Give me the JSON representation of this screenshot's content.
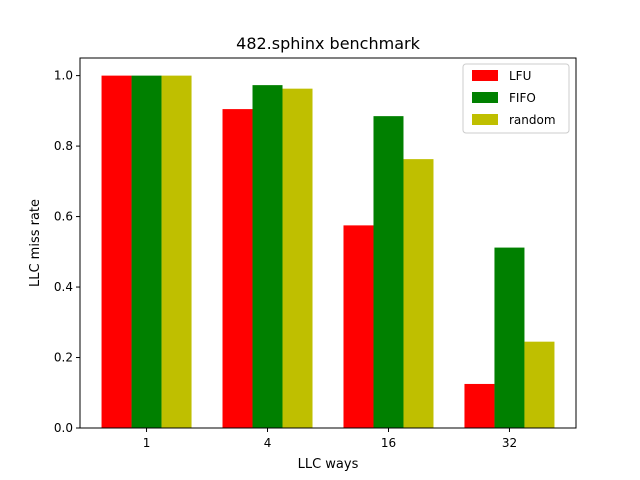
{
  "chart_data": {
    "type": "bar",
    "title": "482.sphinx benchmark",
    "xlabel": "LLC ways",
    "ylabel": "LLC miss rate",
    "categories": [
      "1",
      "4",
      "16",
      "32"
    ],
    "ylim": [
      0,
      1.05
    ],
    "yticks": [
      "0.0",
      "0.2",
      "0.4",
      "0.6",
      "0.8",
      "1.0"
    ],
    "grid": false,
    "legend_position": "top-right",
    "series": [
      {
        "name": "LFU",
        "color": "#ff0000",
        "values": [
          1.0,
          0.905,
          0.575,
          0.125
        ]
      },
      {
        "name": "FIFO",
        "color": "#008000",
        "values": [
          1.0,
          0.973,
          0.885,
          0.512
        ]
      },
      {
        "name": "random",
        "color": "#bfbf00",
        "values": [
          1.0,
          0.963,
          0.763,
          0.245
        ]
      }
    ]
  }
}
